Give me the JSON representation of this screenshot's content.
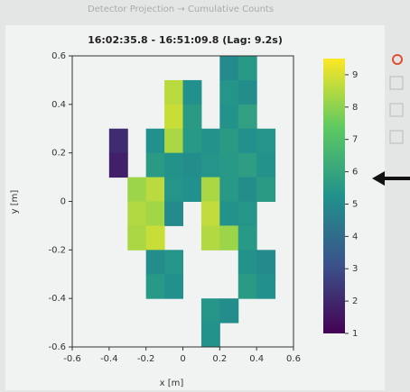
{
  "chart_data": {
    "type": "heatmap",
    "title": "Detector Projection → Cumulative Counts",
    "subtitle": "16:02:35.8 - 16:51:09.8 (Lag: 9.2s)",
    "x_label": "x [m]",
    "y_label": "y [m]",
    "xlim": [
      -0.6,
      0.6
    ],
    "ylim": [
      -0.6,
      0.6
    ],
    "xticks": [
      -0.6,
      -0.4,
      -0.2,
      0,
      0.2,
      0.4,
      0.6
    ],
    "yticks": [
      -0.6,
      -0.4,
      -0.2,
      0,
      0.2,
      0.4,
      0.6
    ],
    "colormap": "viridis",
    "clim": [
      1,
      9.5
    ],
    "cticks": [
      1,
      2,
      3,
      4,
      5,
      6,
      7,
      8,
      9
    ],
    "z": [
      [
        null,
        null,
        null,
        null,
        null,
        null,
        null,
        null,
        5.0,
        5.5,
        null,
        null
      ],
      [
        null,
        null,
        null,
        null,
        null,
        8.6,
        5.2,
        null,
        5.4,
        5.1,
        null,
        null
      ],
      [
        null,
        null,
        null,
        null,
        null,
        8.8,
        5.6,
        null,
        5.3,
        5.8,
        null,
        null
      ],
      [
        null,
        null,
        2.1,
        null,
        5.2,
        8.4,
        5.5,
        5.3,
        5.6,
        5.2,
        5.4,
        null
      ],
      [
        null,
        null,
        1.8,
        null,
        5.6,
        5.3,
        5.1,
        5.4,
        5.5,
        5.7,
        5.3,
        null
      ],
      [
        null,
        null,
        null,
        8.2,
        8.6,
        5.4,
        5.2,
        8.4,
        5.5,
        5.1,
        5.6,
        null
      ],
      [
        null,
        null,
        null,
        8.5,
        8.3,
        5.0,
        null,
        8.7,
        5.3,
        5.4,
        null,
        null
      ],
      [
        null,
        null,
        null,
        8.4,
        8.8,
        null,
        null,
        8.5,
        8.2,
        5.5,
        null,
        null
      ],
      [
        null,
        null,
        null,
        null,
        5.1,
        5.4,
        null,
        null,
        null,
        5.3,
        5.0,
        null
      ],
      [
        null,
        null,
        null,
        null,
        5.5,
        5.2,
        null,
        null,
        null,
        5.6,
        5.2,
        null
      ],
      [
        null,
        null,
        null,
        null,
        null,
        null,
        null,
        5.4,
        5.1,
        null,
        null,
        null
      ],
      [
        null,
        null,
        null,
        null,
        null,
        null,
        null,
        5.3,
        null,
        null,
        null,
        null
      ]
    ]
  }
}
